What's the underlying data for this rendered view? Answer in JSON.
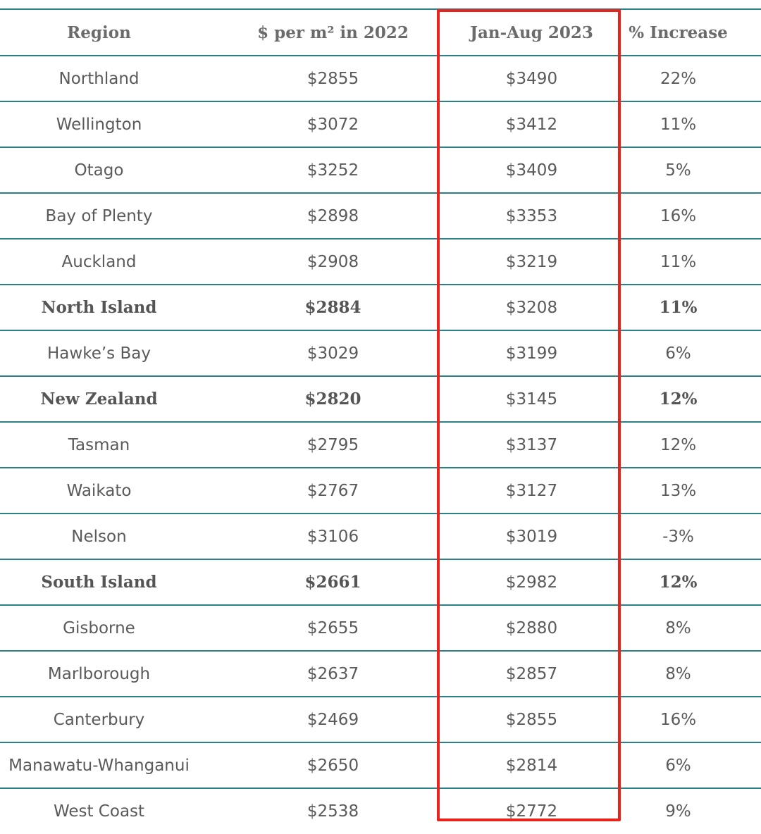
{
  "headers": [
    "Region",
    "$ per m² in 2022",
    "Jan-Aug 2023",
    "% Increase"
  ],
  "rows": [
    {
      "region": "Northland",
      "y2022": "$2855",
      "y2023": "$3490",
      "increase": "22%",
      "bold": false
    },
    {
      "region": "Wellington",
      "y2022": "$3072",
      "y2023": "$3412",
      "increase": "11%",
      "bold": false
    },
    {
      "region": "Otago",
      "y2022": "$3252",
      "y2023": "$3409",
      "increase": "5%",
      "bold": false
    },
    {
      "region": "Bay of Plenty",
      "y2022": "$2898",
      "y2023": "$3353",
      "increase": "16%",
      "bold": false
    },
    {
      "region": "Auckland",
      "y2022": "$2908",
      "y2023": "$3219",
      "increase": "11%",
      "bold": false
    },
    {
      "region": "North Island",
      "y2022": "$2884",
      "y2023": "$3208",
      "increase": "11%",
      "bold": true
    },
    {
      "region": "Hawke’s Bay",
      "y2022": "$3029",
      "y2023": "$3199",
      "increase": "6%",
      "bold": false
    },
    {
      "region": "New Zealand",
      "y2022": "$2820",
      "y2023": "$3145",
      "increase": "12%",
      "bold": true
    },
    {
      "region": "Tasman",
      "y2022": "$2795",
      "y2023": "$3137",
      "increase": "12%",
      "bold": false
    },
    {
      "region": "Waikato",
      "y2022": "$2767",
      "y2023": "$3127",
      "increase": "13%",
      "bold": false
    },
    {
      "region": "Nelson",
      "y2022": "$3106",
      "y2023": "$3019",
      "increase": "-3%",
      "bold": false
    },
    {
      "region": "South Island",
      "y2022": "$2661",
      "y2023": "$2982",
      "increase": "12%",
      "bold": true
    },
    {
      "region": "Gisborne",
      "y2022": "$2655",
      "y2023": "$2880",
      "increase": "8%",
      "bold": false
    },
    {
      "region": "Marlborough",
      "y2022": "$2637",
      "y2023": "$2857",
      "increase": "8%",
      "bold": false
    },
    {
      "region": "Canterbury",
      "y2022": "$2469",
      "y2023": "$2855",
      "increase": "16%",
      "bold": false
    },
    {
      "region": "Manawatu-Whanganui",
      "y2022": "$2650",
      "y2023": "$2814",
      "increase": "6%",
      "bold": false
    },
    {
      "region": "West Coast",
      "y2022": "$2538",
      "y2023": "$2772",
      "increase": "9%",
      "bold": false
    }
  ],
  "colors": {
    "rule": "#2b7f86",
    "highlight": "#e8231c",
    "text": "#5a5a5a"
  }
}
